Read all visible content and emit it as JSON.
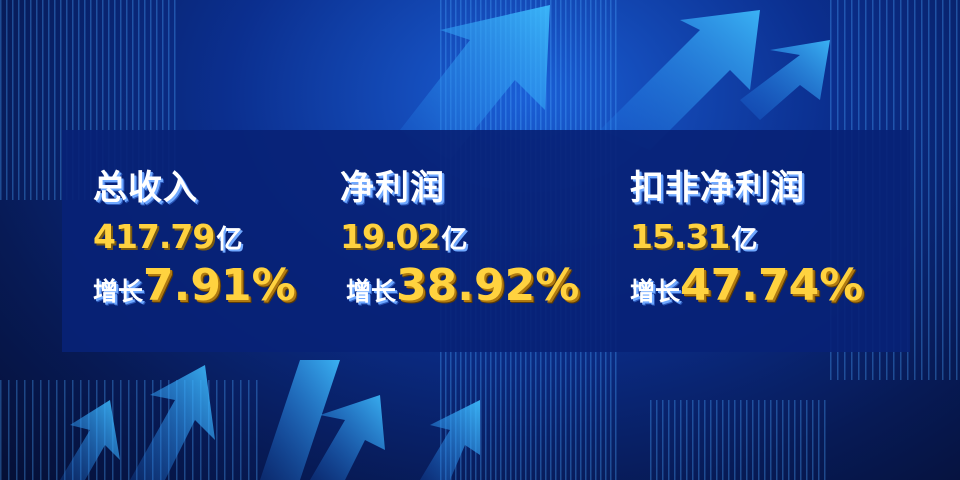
{
  "colors": {
    "background": "#0b2f8f",
    "panel": "#08227a",
    "accent": "#ffd23f",
    "text": "#ffffff"
  },
  "metrics": [
    {
      "title": "总收入",
      "value": "417.79",
      "unit": "亿",
      "growth_label": "增长",
      "growth": "7.91%"
    },
    {
      "title": "净利润",
      "value": "19.02",
      "unit": "亿",
      "growth_label": "增长",
      "growth": "38.92%"
    },
    {
      "title": "扣非净利润",
      "value": "15.31",
      "unit": "亿",
      "growth_label": "增长",
      "growth": "47.74%"
    }
  ],
  "decorations": [
    "upward-arrow-icon",
    "vertical-light-stripes"
  ]
}
